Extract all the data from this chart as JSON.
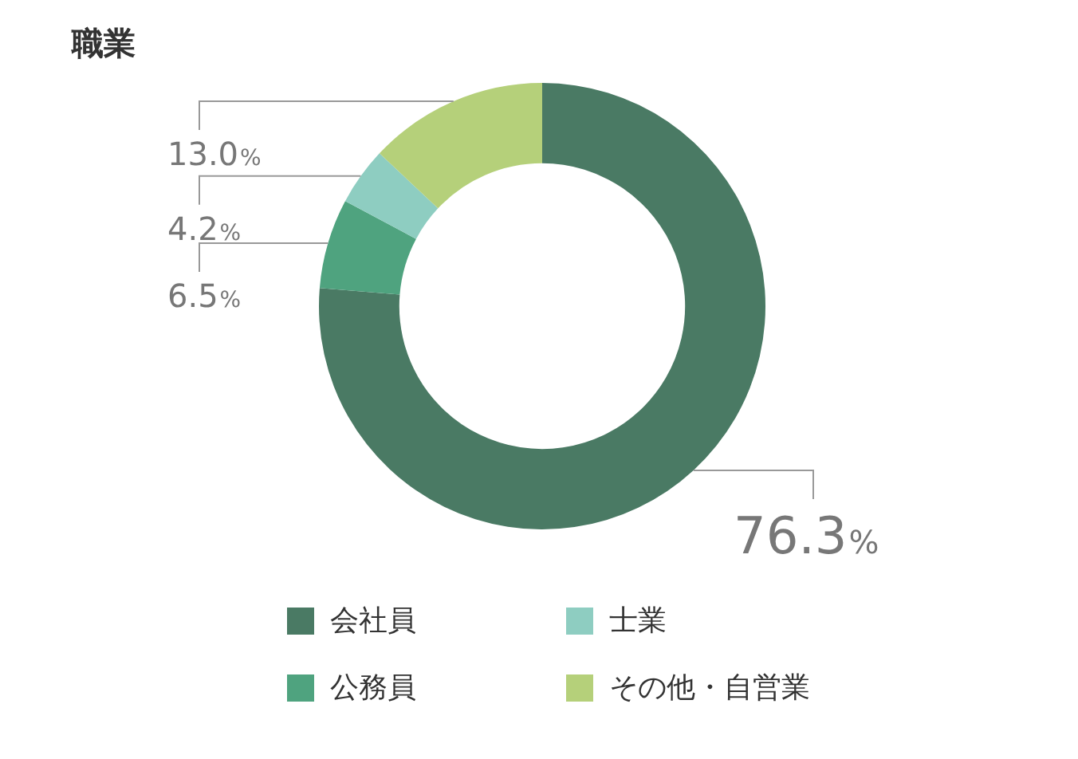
{
  "chart_data": {
    "type": "donut",
    "title": "職業",
    "categories": [
      "会社員",
      "公務員",
      "士業",
      "その他・自営業"
    ],
    "values": [
      76.3,
      6.5,
      4.2,
      13.0
    ],
    "colors": [
      "#4a7a64",
      "#4fa37f",
      "#8ecdc1",
      "#b5d07a"
    ],
    "value_labels": [
      "76.3%",
      "6.5%",
      "4.2%",
      "13.0%"
    ],
    "legend": "bottom"
  }
}
